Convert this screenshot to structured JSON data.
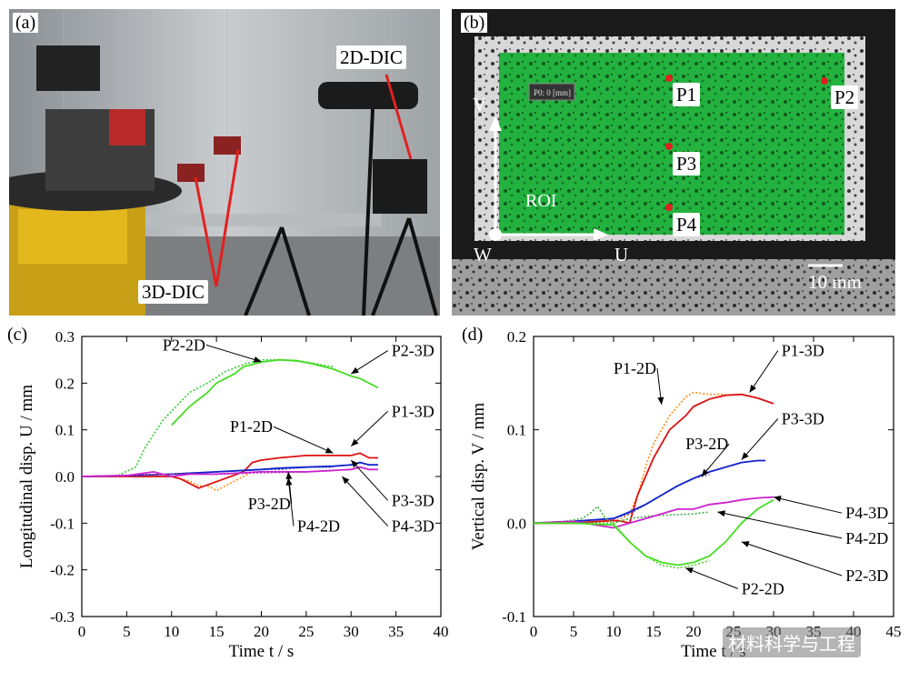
{
  "panels": {
    "a": {
      "label": "(a)",
      "tag_3d": "3D-DIC",
      "tag_2d": "2D-DIC"
    },
    "b": {
      "label": "(b)",
      "points": [
        "P1",
        "P2",
        "P3",
        "P4"
      ],
      "roi": "ROI",
      "axis_v": "V",
      "axis_u": "U",
      "axis_w": "W",
      "scale": "10 mm",
      "overlay_readout": "P0: 0 [mm]"
    }
  },
  "watermark": "材料科学与工程",
  "chart_data": [
    {
      "type": "line",
      "panel_label": "(c)",
      "xlabel": "Time t / s",
      "ylabel": "Longitudinal disp. U / mm",
      "xlim": [
        0,
        40
      ],
      "ylim": [
        -0.3,
        0.3
      ],
      "xticks": [
        "0",
        "5",
        "10",
        "15",
        "20",
        "25",
        "30",
        "35",
        "40"
      ],
      "yticks": [
        "-0.3",
        "-0.2",
        "-0.1",
        "0.0",
        "0.1",
        "0.2",
        "0.3"
      ],
      "grid": false,
      "series": [
        {
          "name": "P2-2D",
          "color": "#33cc33",
          "dash": true,
          "x": [
            0,
            4,
            6,
            7,
            8,
            9,
            10,
            12,
            14,
            16,
            18,
            20,
            22,
            25,
            28
          ],
          "y": [
            0,
            0.002,
            0.02,
            0.06,
            0.09,
            0.12,
            0.14,
            0.18,
            0.2,
            0.225,
            0.24,
            0.25,
            0.25,
            0.245,
            0.235
          ]
        },
        {
          "name": "P2-3D",
          "color": "#44dd22",
          "dash": false,
          "x": [
            10,
            12,
            14,
            15,
            16,
            17,
            18,
            20,
            22,
            24,
            26,
            28,
            30,
            31,
            32,
            33
          ],
          "y": [
            0.11,
            0.15,
            0.18,
            0.2,
            0.21,
            0.22,
            0.235,
            0.245,
            0.25,
            0.248,
            0.24,
            0.23,
            0.215,
            0.21,
            0.2,
            0.19
          ]
        },
        {
          "name": "P1-2D",
          "color": "#ff8c1a",
          "dash": true,
          "x": [
            0,
            5,
            10,
            12,
            13,
            14,
            15,
            16,
            17,
            18,
            19
          ],
          "y": [
            0,
            0,
            0,
            -0.01,
            -0.02,
            -0.02,
            -0.03,
            -0.02,
            -0.01,
            0,
            0.01
          ]
        },
        {
          "name": "P1-3D",
          "color": "#dd1111",
          "dash": false,
          "x": [
            0,
            5,
            10,
            11,
            12,
            13,
            18,
            19,
            20,
            22,
            25,
            28,
            30,
            31,
            32,
            33
          ],
          "y": [
            0,
            0,
            0,
            -0.005,
            -0.015,
            -0.025,
            0.01,
            0.03,
            0.035,
            0.04,
            0.045,
            0.045,
            0.045,
            0.05,
            0.04,
            0.04
          ]
        },
        {
          "name": "P3-2D",
          "color": "#5544aa",
          "dash": true,
          "x": [
            0,
            5,
            10,
            15,
            20,
            22,
            25,
            28
          ],
          "y": [
            0,
            0.002,
            0.005,
            0.01,
            0.015,
            0.015,
            0.02,
            0.02
          ]
        },
        {
          "name": "P3-3D",
          "color": "#1122cc",
          "dash": false,
          "x": [
            0,
            5,
            10,
            15,
            20,
            22,
            25,
            28,
            30,
            31,
            32,
            33
          ],
          "y": [
            0,
            0.002,
            0.005,
            0.01,
            0.015,
            0.018,
            0.02,
            0.022,
            0.025,
            0.03,
            0.025,
            0.025
          ]
        },
        {
          "name": "P4-2D",
          "color": "#aa44aa",
          "dash": true,
          "x": [
            0,
            5,
            10,
            15,
            20,
            25,
            28
          ],
          "y": [
            0,
            0.003,
            0.005,
            0.005,
            0.008,
            0.01,
            0.012
          ]
        },
        {
          "name": "P4-3D",
          "color": "#cc22cc",
          "dash": false,
          "x": [
            0,
            5,
            8,
            10,
            12,
            15,
            20,
            25,
            30,
            31,
            32,
            33
          ],
          "y": [
            0,
            0.002,
            0.01,
            0.0,
            0.005,
            0.005,
            0.01,
            0.01,
            0.015,
            0.02,
            0.015,
            0.015
          ]
        }
      ],
      "annotations": [
        {
          "text": "P2-2D",
          "tx": 9,
          "ty": 0.27,
          "ax": 20,
          "ay": 0.246
        },
        {
          "text": "P2-3D",
          "tx": 34.5,
          "ty": 0.258,
          "ax": 30,
          "ay": 0.22
        },
        {
          "text": "P1-2D",
          "tx": 16.5,
          "ty": 0.095,
          "ax": 28,
          "ay": 0.05
        },
        {
          "text": "P1-3D",
          "tx": 34.5,
          "ty": 0.128,
          "ax": 30,
          "ay": 0.065
        },
        {
          "text": "P3-2D",
          "tx": 18.5,
          "ty": -0.07,
          "ax": 23,
          "ay": 0.01
        },
        {
          "text": "P3-3D",
          "tx": 34.5,
          "ty": -0.063,
          "ax": 30,
          "ay": 0.035
        },
        {
          "text": "P4-2D",
          "tx": 24,
          "ty": -0.118,
          "ax": 23,
          "ay": -0.003
        },
        {
          "text": "P4-3D",
          "tx": 34.5,
          "ty": -0.118,
          "ax": 29,
          "ay": 0.0
        }
      ]
    },
    {
      "type": "line",
      "panel_label": "(d)",
      "xlabel": "Time t / s",
      "ylabel": "Vertical disp. V / mm",
      "xlim": [
        0,
        45
      ],
      "ylim": [
        -0.1,
        0.2
      ],
      "xticks": [
        "0",
        "5",
        "10",
        "15",
        "20",
        "25",
        "30",
        "35",
        "40",
        "45"
      ],
      "yticks": [
        "-0.1",
        "0.0",
        "0.1",
        "0.2"
      ],
      "grid": false,
      "series": [
        {
          "name": "P1-2D",
          "color": "#ff8c1a",
          "dash": true,
          "x": [
            0,
            10,
            11,
            12,
            13,
            14,
            15,
            16,
            17,
            18,
            19,
            20,
            22,
            24
          ],
          "y": [
            0,
            0.002,
            0.005,
            0.01,
            0.03,
            0.06,
            0.085,
            0.1,
            0.115,
            0.125,
            0.135,
            0.14,
            0.138,
            0.138
          ]
        },
        {
          "name": "P1-3D",
          "color": "#dd1111",
          "dash": false,
          "x": [
            0,
            5,
            10,
            11,
            12,
            13,
            15,
            17,
            19,
            20,
            22,
            24,
            26,
            28,
            30
          ],
          "y": [
            0,
            0,
            0.003,
            0.002,
            0.0,
            0.03,
            0.07,
            0.1,
            0.115,
            0.125,
            0.133,
            0.137,
            0.138,
            0.134,
            0.128
          ]
        },
        {
          "name": "P3-2D",
          "color": "#6655bb",
          "dash": true,
          "x": [
            0,
            5,
            10,
            12,
            14,
            16,
            18,
            20,
            22
          ],
          "y": [
            0,
            0.002,
            0.005,
            0.01,
            0.02,
            0.03,
            0.04,
            0.048,
            0.052
          ]
        },
        {
          "name": "P3-3D",
          "color": "#1122cc",
          "dash": false,
          "x": [
            0,
            5,
            10,
            12,
            14,
            16,
            18,
            20,
            22,
            24,
            26,
            28,
            29
          ],
          "y": [
            0,
            0.002,
            0.005,
            0.012,
            0.02,
            0.03,
            0.04,
            0.048,
            0.055,
            0.06,
            0.065,
            0.067,
            0.067
          ]
        },
        {
          "name": "P4-2D",
          "color": "#44aa44",
          "dash": true,
          "x": [
            0,
            4,
            6,
            7,
            8,
            9,
            10,
            12,
            15,
            20,
            22
          ],
          "y": [
            0,
            0.002,
            0.005,
            0.01,
            0.018,
            0.005,
            0.0,
            0.005,
            0.008,
            0.01,
            0.012
          ]
        },
        {
          "name": "P4-3D",
          "color": "#cc22cc",
          "dash": false,
          "x": [
            0,
            5,
            10,
            12,
            14,
            16,
            18,
            20,
            22,
            24,
            26,
            28,
            30
          ],
          "y": [
            0,
            0.002,
            -0.005,
            0.0,
            0.005,
            0.01,
            0.015,
            0.015,
            0.02,
            0.022,
            0.025,
            0.027,
            0.028
          ]
        },
        {
          "name": "P2-2D",
          "color": "#55cc33",
          "dash": true,
          "x": [
            0,
            5,
            10,
            12,
            14,
            16,
            18,
            20,
            22
          ],
          "y": [
            0,
            0,
            0.0,
            -0.02,
            -0.035,
            -0.045,
            -0.048,
            -0.045,
            -0.04
          ]
        },
        {
          "name": "P2-3D",
          "color": "#44dd22",
          "dash": false,
          "x": [
            0,
            5,
            10,
            12,
            14,
            16,
            18,
            20,
            22,
            24,
            26,
            28,
            30
          ],
          "y": [
            0,
            0,
            -0.002,
            -0.02,
            -0.035,
            -0.042,
            -0.045,
            -0.042,
            -0.035,
            -0.02,
            0.0,
            0.015,
            0.025
          ]
        }
      ],
      "annotations": [
        {
          "text": "P1-2D",
          "tx": 10,
          "ty": 0.16,
          "ax": 16,
          "ay": 0.127
        },
        {
          "text": "P1-3D",
          "tx": 31,
          "ty": 0.179,
          "ax": 27,
          "ay": 0.14
        },
        {
          "text": "P3-3D",
          "tx": 31,
          "ty": 0.106,
          "ax": 26,
          "ay": 0.068
        },
        {
          "text": "P3-2D",
          "tx": 19,
          "ty": 0.079,
          "ax": 21,
          "ay": 0.05
        },
        {
          "text": "P4-3D",
          "tx": 39,
          "ty": 0.005,
          "ax": 30,
          "ay": 0.028
        },
        {
          "text": "P4-2D",
          "tx": 39,
          "ty": -0.022,
          "ax": 23,
          "ay": 0.012
        },
        {
          "text": "P2-3D",
          "tx": 39,
          "ty": -0.062,
          "ax": 26,
          "ay": -0.02
        },
        {
          "text": "P2-2D",
          "tx": 26,
          "ty": -0.076,
          "ax": 19,
          "ay": -0.048
        }
      ]
    }
  ]
}
